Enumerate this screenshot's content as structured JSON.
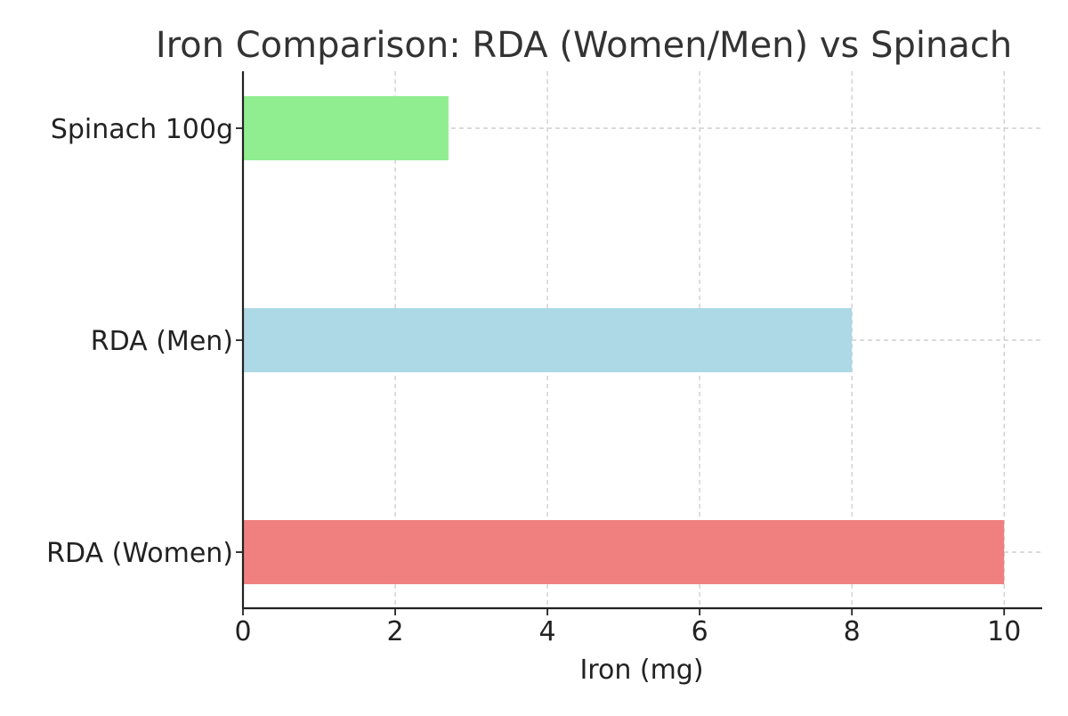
{
  "chart_data": {
    "type": "bar",
    "orientation": "horizontal",
    "title": "Iron Comparison: RDA (Women/Men) vs Spinach",
    "xlabel": "Iron (mg)",
    "ylabel": "",
    "categories": [
      "RDA (Women)",
      "RDA (Men)",
      "Spinach 100g"
    ],
    "values": [
      10,
      8,
      2.7
    ],
    "colors": [
      "#f08080",
      "#add8e6",
      "#90ee90"
    ],
    "xlim": [
      0,
      10.5
    ],
    "xticks": [
      0,
      2,
      4,
      6,
      8,
      10
    ],
    "grid": true
  }
}
